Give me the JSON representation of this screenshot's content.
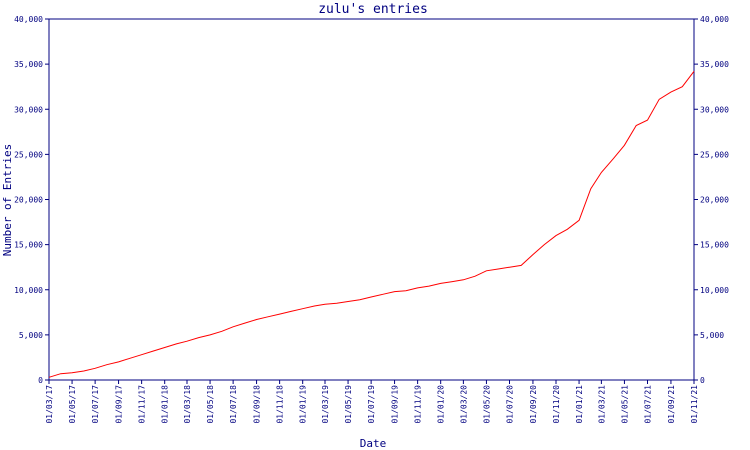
{
  "chart_data": {
    "type": "line",
    "title": "zulu's entries",
    "xlabel": "Date",
    "ylabel": "Number of Entries",
    "ylim": [
      0,
      40000
    ],
    "y_ticks": [
      "0",
      "5,000",
      "10,000",
      "15,000",
      "20,000",
      "25,000",
      "30,000",
      "35,000",
      "40,000"
    ],
    "y_tick_values": [
      0,
      5000,
      10000,
      15000,
      20000,
      25000,
      30000,
      35000,
      40000
    ],
    "x_ticks": [
      "01/03/17",
      "01/05/17",
      "01/07/17",
      "01/09/17",
      "01/11/17",
      "01/01/18",
      "01/03/18",
      "01/05/18",
      "01/07/18",
      "01/09/18",
      "01/11/18",
      "01/01/19",
      "01/03/19",
      "01/05/19",
      "01/07/19",
      "01/09/19",
      "01/11/19",
      "01/01/20",
      "01/03/20",
      "01/05/20",
      "01/07/20",
      "01/09/20",
      "01/11/20",
      "01/01/21",
      "01/03/21",
      "01/05/21",
      "01/07/21",
      "01/09/21",
      "01/11/21"
    ],
    "grid": false,
    "y_axis_both_sides": true,
    "colors": {
      "line": "#ff0000",
      "axis": "#000080",
      "text": "#000080",
      "background": "#ffffff"
    },
    "series": [
      {
        "x": [
          "01/03/17",
          "01/04/17",
          "01/05/17",
          "01/06/17",
          "01/07/17",
          "01/08/17",
          "01/09/17",
          "01/10/17",
          "01/11/17",
          "01/12/17",
          "01/01/18",
          "01/02/18",
          "01/03/18",
          "01/04/18",
          "01/05/18",
          "01/06/18",
          "01/07/18",
          "01/08/18",
          "01/09/18",
          "01/10/18",
          "01/11/18",
          "01/12/18",
          "01/01/19",
          "01/02/19",
          "01/03/19",
          "01/04/19",
          "01/05/19",
          "01/06/19",
          "01/07/19",
          "01/08/19",
          "01/09/19",
          "01/10/19",
          "01/11/19",
          "01/12/19",
          "01/01/20",
          "01/02/20",
          "01/03/20",
          "01/04/20",
          "01/05/20",
          "01/06/20",
          "01/07/20",
          "01/08/20",
          "01/09/20",
          "01/10/20",
          "01/11/20",
          "01/12/20",
          "01/01/21",
          "01/02/21",
          "01/03/21",
          "01/04/21",
          "01/05/21",
          "01/06/21",
          "01/07/21",
          "01/08/21",
          "01/09/21",
          "01/10/21",
          "01/11/21"
        ],
        "values": [
          300,
          700,
          800,
          1000,
          1300,
          1700,
          2000,
          2400,
          2800,
          3200,
          3600,
          4000,
          4300,
          4700,
          5000,
          5400,
          5900,
          6300,
          6700,
          7000,
          7300,
          7600,
          7900,
          8200,
          8400,
          8500,
          8700,
          8900,
          9200,
          9500,
          9800,
          9900,
          10200,
          10400,
          10700,
          10900,
          11100,
          11500,
          12100,
          12300,
          12500,
          12700,
          13900,
          15000,
          16000,
          16700,
          17700,
          21200,
          23000,
          24500,
          26000,
          28200,
          28800,
          31100,
          31900,
          32500,
          34200
        ]
      }
    ]
  }
}
